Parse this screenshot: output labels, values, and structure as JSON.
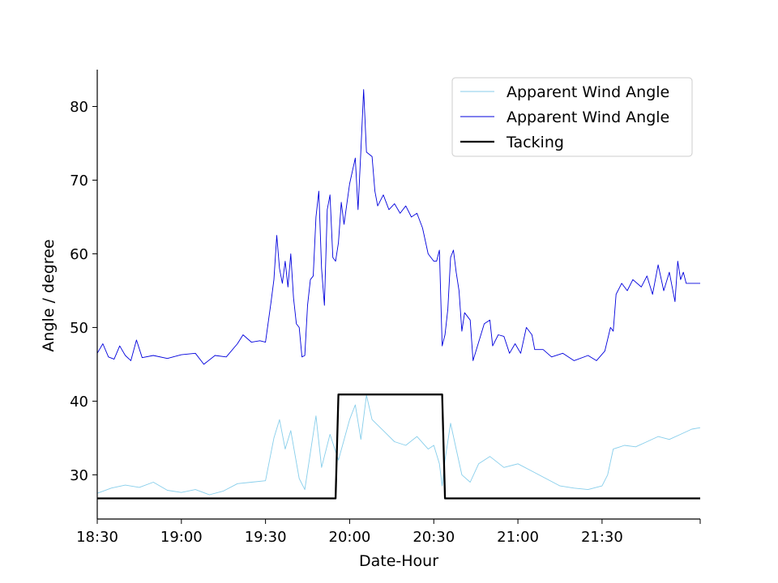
{
  "chart_data": {
    "type": "line",
    "title": "",
    "xlabel": "Date-Hour",
    "ylabel": "Angle / degree",
    "x_axis": {
      "unit": "time",
      "range": [
        "18:30",
        "22:05"
      ],
      "ticks": [
        "18:30",
        "19:00",
        "19:30",
        "20:00",
        "20:30",
        "21:00",
        "21:30"
      ]
    },
    "y_axis": {
      "range": [
        24,
        85
      ],
      "ticks": [
        30,
        40,
        50,
        60,
        70,
        80
      ]
    },
    "grid": false,
    "legend": {
      "position": "top-right",
      "entries": [
        "Apparent Wind Angle",
        "Apparent Wind Angle",
        "Tacking"
      ]
    },
    "series": [
      {
        "name": "Apparent Wind Angle",
        "color": "#87ceeb",
        "line_width": "thin",
        "points": [
          [
            "18:30",
            27.5
          ],
          [
            "18:35",
            28.2
          ],
          [
            "18:40",
            28.6
          ],
          [
            "18:45",
            28.3
          ],
          [
            "18:50",
            29.0
          ],
          [
            "18:55",
            27.9
          ],
          [
            "19:00",
            27.6
          ],
          [
            "19:05",
            28.0
          ],
          [
            "19:10",
            27.3
          ],
          [
            "19:15",
            27.8
          ],
          [
            "19:20",
            28.8
          ],
          [
            "19:25",
            29.0
          ],
          [
            "19:30",
            29.2
          ],
          [
            "19:33",
            35.0
          ],
          [
            "19:35",
            37.5
          ],
          [
            "19:37",
            33.5
          ],
          [
            "19:39",
            36.0
          ],
          [
            "19:42",
            29.5
          ],
          [
            "19:44",
            28.0
          ],
          [
            "19:46",
            33.0
          ],
          [
            "19:48",
            38.0
          ],
          [
            "19:50",
            31.0
          ],
          [
            "19:53",
            35.5
          ],
          [
            "19:56",
            32.0
          ],
          [
            "20:00",
            37.5
          ],
          [
            "20:02",
            39.5
          ],
          [
            "20:04",
            34.8
          ],
          [
            "20:06",
            40.8
          ],
          [
            "20:08",
            37.5
          ],
          [
            "20:12",
            36.0
          ],
          [
            "20:16",
            34.5
          ],
          [
            "20:20",
            34.0
          ],
          [
            "20:24",
            35.2
          ],
          [
            "20:28",
            33.5
          ],
          [
            "20:30",
            34.0
          ],
          [
            "20:32",
            31.5
          ],
          [
            "20:33",
            28.5
          ],
          [
            "20:34",
            32.0
          ],
          [
            "20:36",
            37.0
          ],
          [
            "20:38",
            33.5
          ],
          [
            "20:40",
            30.0
          ],
          [
            "20:43",
            29.0
          ],
          [
            "20:46",
            31.5
          ],
          [
            "20:50",
            32.5
          ],
          [
            "20:55",
            31.0
          ],
          [
            "21:00",
            31.5
          ],
          [
            "21:05",
            30.5
          ],
          [
            "21:10",
            29.5
          ],
          [
            "21:15",
            28.5
          ],
          [
            "21:20",
            28.2
          ],
          [
            "21:25",
            28.0
          ],
          [
            "21:30",
            28.5
          ],
          [
            "21:32",
            30.0
          ],
          [
            "21:34",
            33.5
          ],
          [
            "21:38",
            34.0
          ],
          [
            "21:42",
            33.8
          ],
          [
            "21:46",
            34.5
          ],
          [
            "21:50",
            35.2
          ],
          [
            "21:54",
            34.8
          ],
          [
            "21:58",
            35.5
          ],
          [
            "22:02",
            36.2
          ],
          [
            "22:05",
            36.4
          ]
        ]
      },
      {
        "name": "Apparent Wind Angle",
        "color": "#0000dd",
        "line_width": "thin",
        "points": [
          [
            "18:30",
            46.5
          ],
          [
            "18:32",
            47.8
          ],
          [
            "18:34",
            46.0
          ],
          [
            "18:36",
            45.7
          ],
          [
            "18:38",
            47.5
          ],
          [
            "18:40",
            46.2
          ],
          [
            "18:42",
            45.5
          ],
          [
            "18:44",
            48.3
          ],
          [
            "18:46",
            45.9
          ],
          [
            "18:50",
            46.2
          ],
          [
            "18:55",
            45.8
          ],
          [
            "19:00",
            46.3
          ],
          [
            "19:05",
            46.5
          ],
          [
            "19:08",
            45.0
          ],
          [
            "19:12",
            46.2
          ],
          [
            "19:16",
            46.0
          ],
          [
            "19:20",
            47.8
          ],
          [
            "19:22",
            49.0
          ],
          [
            "19:25",
            48.0
          ],
          [
            "19:28",
            48.2
          ],
          [
            "19:30",
            48.0
          ],
          [
            "19:32",
            53.5
          ],
          [
            "19:33",
            56.5
          ],
          [
            "19:34",
            62.5
          ],
          [
            "19:35",
            58.0
          ],
          [
            "19:36",
            56.0
          ],
          [
            "19:37",
            59.0
          ],
          [
            "19:38",
            55.5
          ],
          [
            "19:39",
            60.0
          ],
          [
            "19:40",
            54.0
          ],
          [
            "19:41",
            50.5
          ],
          [
            "19:42",
            50.0
          ],
          [
            "19:43",
            46.0
          ],
          [
            "19:44",
            46.2
          ],
          [
            "19:45",
            53.0
          ],
          [
            "19:46",
            56.5
          ],
          [
            "19:47",
            57.0
          ],
          [
            "19:48",
            65.0
          ],
          [
            "19:49",
            68.5
          ],
          [
            "19:50",
            58.0
          ],
          [
            "19:51",
            53.0
          ],
          [
            "19:52",
            66.0
          ],
          [
            "19:53",
            68.0
          ],
          [
            "19:54",
            59.5
          ],
          [
            "19:55",
            59.0
          ],
          [
            "19:56",
            61.5
          ],
          [
            "19:57",
            67.0
          ],
          [
            "19:58",
            64.0
          ],
          [
            "20:00",
            69.5
          ],
          [
            "20:02",
            73.0
          ],
          [
            "20:03",
            66.0
          ],
          [
            "20:04",
            74.0
          ],
          [
            "20:05",
            82.3
          ],
          [
            "20:06",
            73.8
          ],
          [
            "20:07",
            73.5
          ],
          [
            "20:08",
            73.2
          ],
          [
            "20:09",
            68.5
          ],
          [
            "20:10",
            66.5
          ],
          [
            "20:12",
            68.0
          ],
          [
            "20:14",
            66.0
          ],
          [
            "20:16",
            66.8
          ],
          [
            "20:18",
            65.5
          ],
          [
            "20:20",
            66.5
          ],
          [
            "20:22",
            65.0
          ],
          [
            "20:24",
            65.5
          ],
          [
            "20:26",
            63.5
          ],
          [
            "20:28",
            60.0
          ],
          [
            "20:30",
            59.0
          ],
          [
            "20:31",
            59.0
          ],
          [
            "20:32",
            60.5
          ],
          [
            "20:33",
            47.5
          ],
          [
            "20:34",
            49.0
          ],
          [
            "20:35",
            52.5
          ],
          [
            "20:36",
            59.5
          ],
          [
            "20:37",
            60.5
          ],
          [
            "20:38",
            57.5
          ],
          [
            "20:39",
            55.0
          ],
          [
            "20:40",
            49.5
          ],
          [
            "20:41",
            52.0
          ],
          [
            "20:43",
            51.0
          ],
          [
            "20:44",
            45.5
          ],
          [
            "20:46",
            48.0
          ],
          [
            "20:48",
            50.5
          ],
          [
            "20:50",
            51.0
          ],
          [
            "20:51",
            47.5
          ],
          [
            "20:53",
            49.0
          ],
          [
            "20:55",
            48.8
          ],
          [
            "20:57",
            46.5
          ],
          [
            "20:59",
            47.8
          ],
          [
            "21:01",
            46.5
          ],
          [
            "21:03",
            50.0
          ],
          [
            "21:05",
            49.0
          ],
          [
            "21:06",
            47.0
          ],
          [
            "21:09",
            47.0
          ],
          [
            "21:12",
            46.0
          ],
          [
            "21:16",
            46.5
          ],
          [
            "21:20",
            45.5
          ],
          [
            "21:25",
            46.2
          ],
          [
            "21:28",
            45.5
          ],
          [
            "21:31",
            46.8
          ],
          [
            "21:33",
            50.0
          ],
          [
            "21:34",
            49.5
          ],
          [
            "21:35",
            54.5
          ],
          [
            "21:37",
            56.0
          ],
          [
            "21:39",
            55.0
          ],
          [
            "21:41",
            56.5
          ],
          [
            "21:44",
            55.5
          ],
          [
            "21:46",
            57.0
          ],
          [
            "21:48",
            54.5
          ],
          [
            "21:50",
            58.5
          ],
          [
            "21:52",
            55.0
          ],
          [
            "21:54",
            57.5
          ],
          [
            "21:56",
            53.5
          ],
          [
            "21:57",
            59.0
          ],
          [
            "21:58",
            56.5
          ],
          [
            "21:59",
            57.5
          ],
          [
            "22:00",
            56.0
          ],
          [
            "22:05",
            56.0
          ]
        ]
      },
      {
        "name": "Tacking",
        "color": "#000000",
        "line_width": "thick",
        "points": [
          [
            "18:30",
            26.8
          ],
          [
            "19:55",
            26.8
          ],
          [
            "19:56",
            40.9
          ],
          [
            "20:33",
            40.9
          ],
          [
            "20:34",
            26.8
          ],
          [
            "22:05",
            26.8
          ]
        ]
      }
    ]
  }
}
